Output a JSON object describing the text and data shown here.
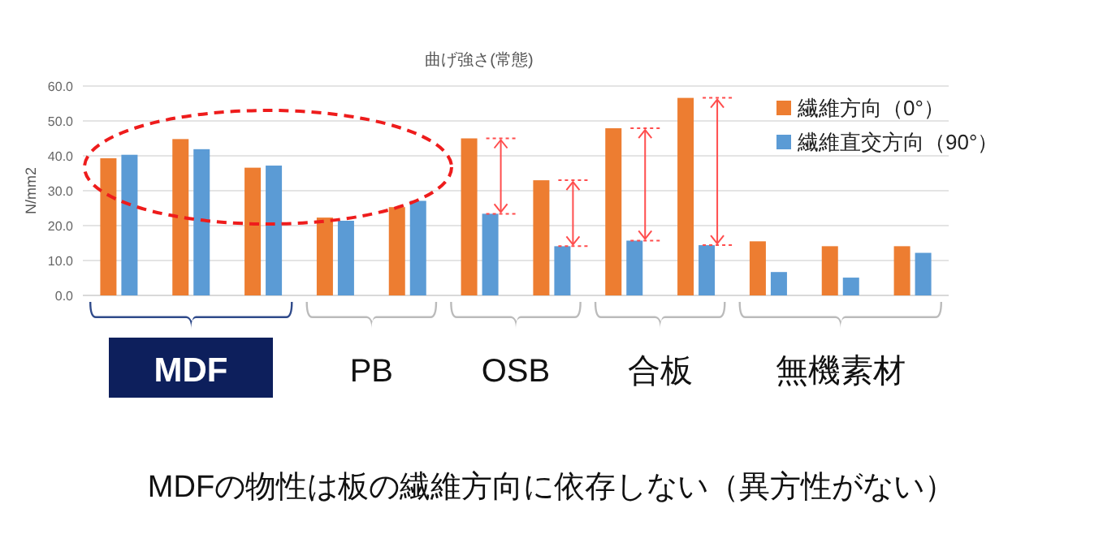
{
  "chart_data": {
    "type": "bar",
    "title": "曲げ強さ(常態)",
    "ylabel": "N/mm2",
    "categories": [
      null,
      null,
      null,
      null,
      null,
      null,
      null,
      null,
      null,
      null,
      null,
      null
    ],
    "series": [
      {
        "name": "繊維方向（0°）",
        "color": "#ed7d31",
        "values": [
          39.3,
          44.8,
          36.6,
          22.3,
          25.3,
          45.0,
          33.0,
          47.9,
          56.6,
          15.5,
          14.1,
          14.1
        ]
      },
      {
        "name": "繊維直交方向（90°）",
        "color": "#5b9bd5",
        "values": [
          40.3,
          41.9,
          37.2,
          21.4,
          27.1,
          23.4,
          14.1,
          15.7,
          14.4,
          6.7,
          5.1,
          12.2
        ]
      }
    ],
    "ylim": [
      0,
      60
    ],
    "yticks": [
      {
        "value": 0,
        "label": "0.0"
      },
      {
        "value": 10,
        "label": "10.0"
      },
      {
        "value": 20,
        "label": "20.0"
      },
      {
        "value": 30,
        "label": "30.0"
      },
      {
        "value": 40,
        "label": "40.0"
      },
      {
        "value": 50,
        "label": "50.0"
      },
      {
        "value": 60,
        "label": "60.0"
      }
    ],
    "grid": "y",
    "legend": "top right",
    "annotations": [
      "MDF",
      "PB",
      "OSB",
      "合板",
      "無機素材",
      "MDFの物性は板の繊維方向に依存しない（異方性がない）"
    ]
  }
}
